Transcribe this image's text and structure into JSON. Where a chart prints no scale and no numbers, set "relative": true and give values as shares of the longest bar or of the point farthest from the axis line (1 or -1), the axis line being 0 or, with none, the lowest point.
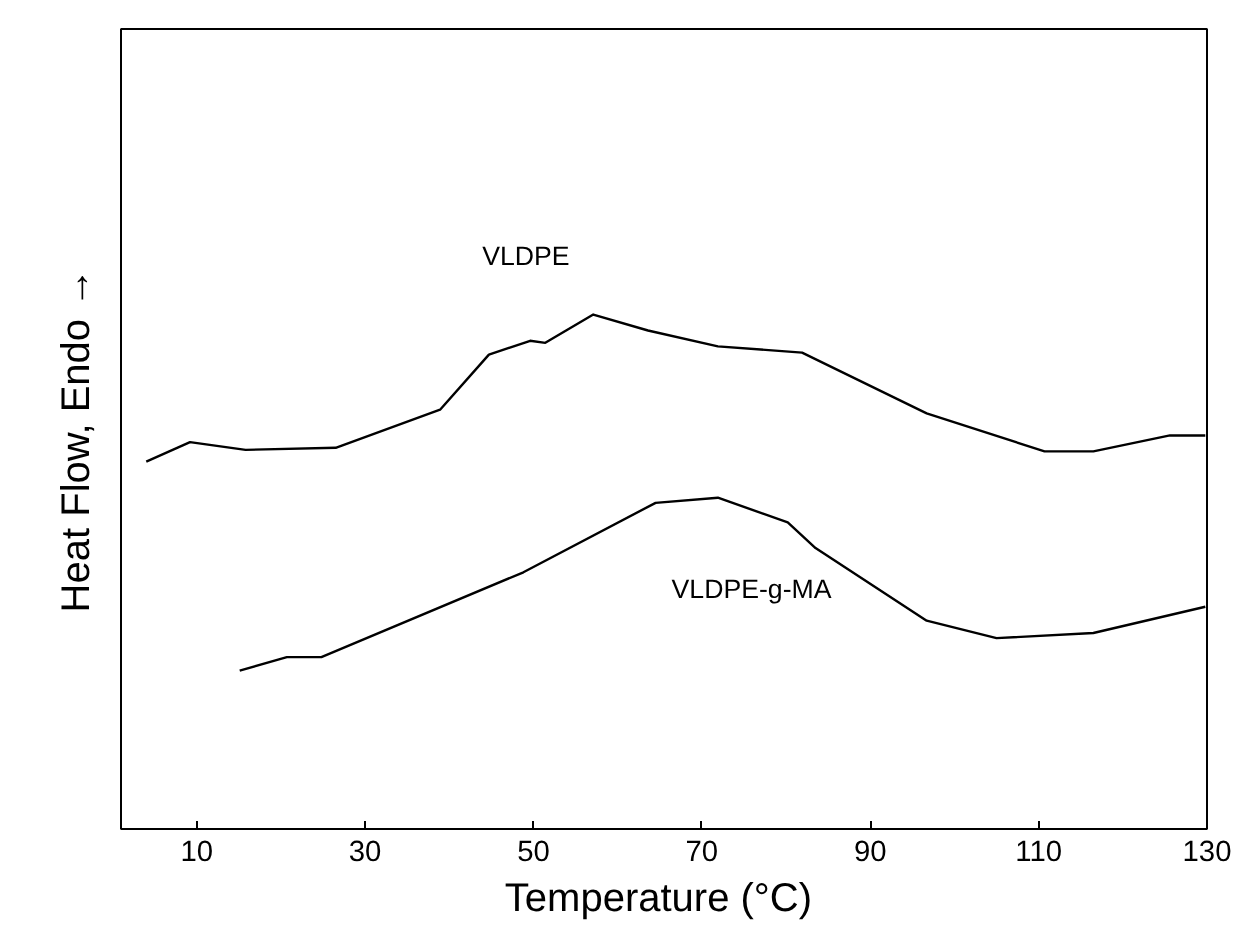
{
  "chart_data": {
    "type": "line",
    "relative": true,
    "xlabel": "Temperature  (°C)",
    "ylabel": "Heat Flow,  Endo  →",
    "xlim": [
      1,
      130
    ],
    "xticks": [
      10,
      30,
      50,
      70,
      90,
      110,
      130
    ],
    "grid": false,
    "marker": "none",
    "line_style": "solid",
    "series": [
      {
        "name": "VLDPE",
        "color": "#000000",
        "x": [
          4.0,
          9.2,
          15.8,
          26.5,
          38.9,
          44.7,
          49.6,
          51.4,
          57.1,
          63.6,
          71.9,
          81.9,
          96.7,
          110.7,
          116.5,
          125.6,
          129.8
        ],
        "values": [
          0.714,
          0.752,
          0.737,
          0.741,
          0.815,
          0.922,
          0.949,
          0.945,
          1.0,
          0.969,
          0.938,
          0.926,
          0.808,
          0.734,
          0.734,
          0.765,
          0.765
        ]
      },
      {
        "name": "VLDPE-g-MA",
        "color": "#000000",
        "x": [
          15.1,
          20.7,
          24.8,
          48.8,
          64.5,
          71.9,
          80.2,
          83.5,
          96.7,
          105.0,
          116.5,
          129.8
        ],
        "values": [
          0.308,
          0.334,
          0.334,
          0.499,
          0.634,
          0.644,
          0.596,
          0.546,
          0.405,
          0.371,
          0.381,
          0.432
        ]
      }
    ]
  }
}
